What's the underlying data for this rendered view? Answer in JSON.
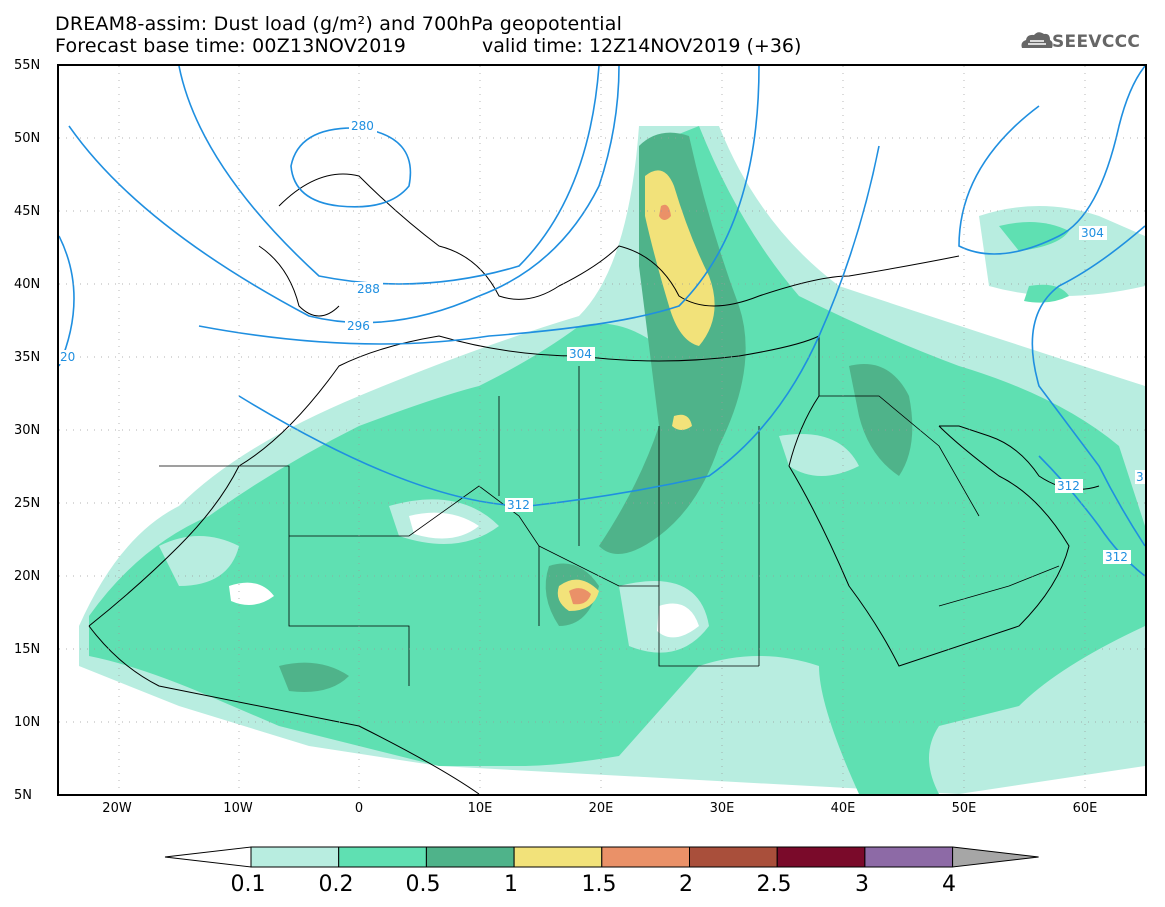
{
  "header": {
    "title": "DREAM8-assim: Dust load (g/m²) and 700hPa geopotential",
    "base_time": "Forecast base time: 00Z13NOV2019",
    "valid_time": "valid time: 12Z14NOV2019 (+36)",
    "logo_text": "SEEVCCC"
  },
  "map": {
    "latitude_labels": [
      "55N",
      "50N",
      "45N",
      "40N",
      "35N",
      "30N",
      "25N",
      "20N",
      "15N",
      "10N",
      "5N"
    ],
    "longitude_labels": [
      "20W",
      "10W",
      "0",
      "10E",
      "20E",
      "30E",
      "40E",
      "50E",
      "60E"
    ],
    "contour_labels": [
      "280",
      "288",
      "296",
      "304",
      "312",
      "20",
      "304",
      "312",
      "312",
      "3"
    ],
    "background_color": "#ffffff",
    "border_color": "#000000",
    "contour_color": "#1f8fe0"
  },
  "colorbar": {
    "ticks": [
      "0.1",
      "0.2",
      "0.5",
      "1",
      "1.5",
      "2",
      "2.5",
      "3",
      "4"
    ],
    "colors": [
      "#ffffff",
      "#b8ede0",
      "#5fe0b2",
      "#4fb38a",
      "#f2e27a",
      "#ea9168",
      "#a94f3b",
      "#7a0a2a",
      "#8d6aa6",
      "#a6a6a6"
    ]
  }
}
